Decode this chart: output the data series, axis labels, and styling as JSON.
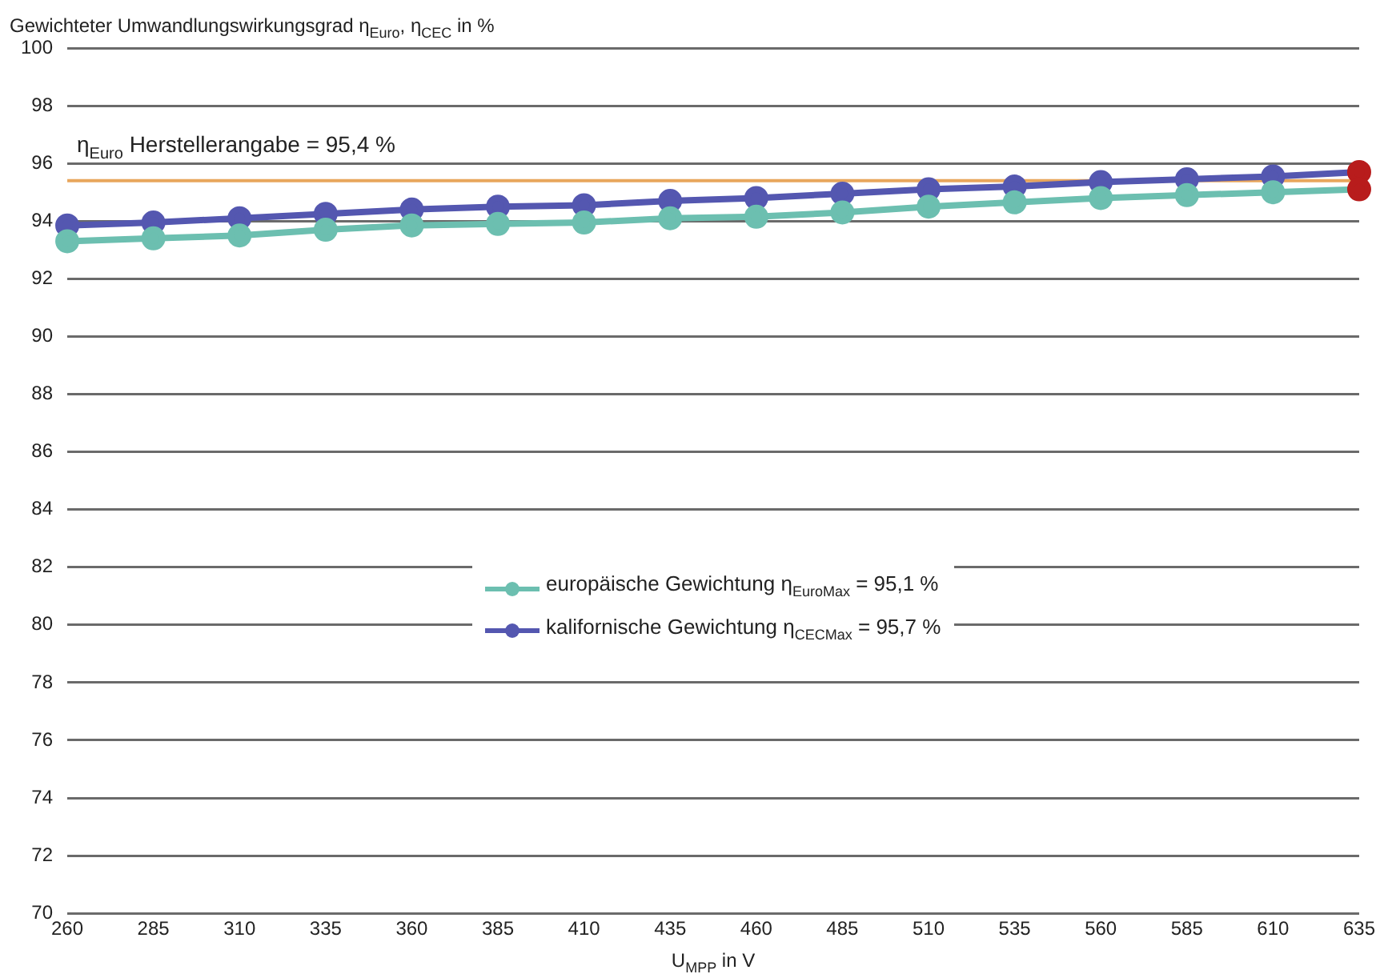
{
  "chart_data": {
    "type": "line",
    "ylabel": "Gewichteter Umwandlungswirkungsgrad η$_{Euro}$, η$_{CEC}$ in %",
    "xlabel": "U$_{MPP}$ in V",
    "categories": [
      "260",
      "285",
      "310",
      "335",
      "360",
      "385",
      "410",
      "435",
      "460",
      "485",
      "510",
      "535",
      "560",
      "585",
      "610",
      "635"
    ],
    "series": [
      {
        "name": "europäische Gewichtung  η$_{EuroMax}$ = 95,1 %",
        "color": "#6cbfb0",
        "colors": [
          "#6cbfb0",
          "#6cbfb0",
          "#6cbfb0",
          "#6cbfb0",
          "#6cbfb0",
          "#6cbfb0",
          "#6cbfb0",
          "#6cbfb0",
          "#6cbfb0",
          "#6cbfb0",
          "#6cbfb0",
          "#6cbfb0",
          "#6cbfb0",
          "#6cbfb0",
          "#6cbfb0",
          "#b81c1c"
        ],
        "values": [
          93.3,
          93.4,
          93.5,
          93.7,
          93.85,
          93.9,
          93.95,
          94.1,
          94.15,
          94.3,
          94.5,
          94.65,
          94.8,
          94.9,
          95.0,
          95.1
        ]
      },
      {
        "name": "kalifornische Gewichtung  η$_{CECMax}$ = 95,7 %",
        "color": "#5457b0",
        "colors": [
          "#5457b0",
          "#5457b0",
          "#5457b0",
          "#5457b0",
          "#5457b0",
          "#5457b0",
          "#5457b0",
          "#5457b0",
          "#5457b0",
          "#5457b0",
          "#5457b0",
          "#5457b0",
          "#5457b0",
          "#5457b0",
          "#5457b0",
          "#b81c1c"
        ],
        "values": [
          93.85,
          93.95,
          94.1,
          94.25,
          94.4,
          94.5,
          94.55,
          94.7,
          94.8,
          94.95,
          95.1,
          95.2,
          95.35,
          95.45,
          95.55,
          95.7
        ]
      }
    ],
    "ylim": [
      70,
      100
    ],
    "yticks": [
      70,
      72,
      74,
      76,
      78,
      80,
      82,
      84,
      86,
      88,
      90,
      92,
      94,
      96,
      98,
      100
    ],
    "ref_lines": [
      {
        "axis": "y",
        "value": 95.4,
        "label": "η$_{Euro}$ Herstellerangabe = 95,4 %",
        "color": "#e8a65c"
      }
    ],
    "grid": "y",
    "legend": "center",
    "marker": "circle",
    "line_style": "solid"
  }
}
